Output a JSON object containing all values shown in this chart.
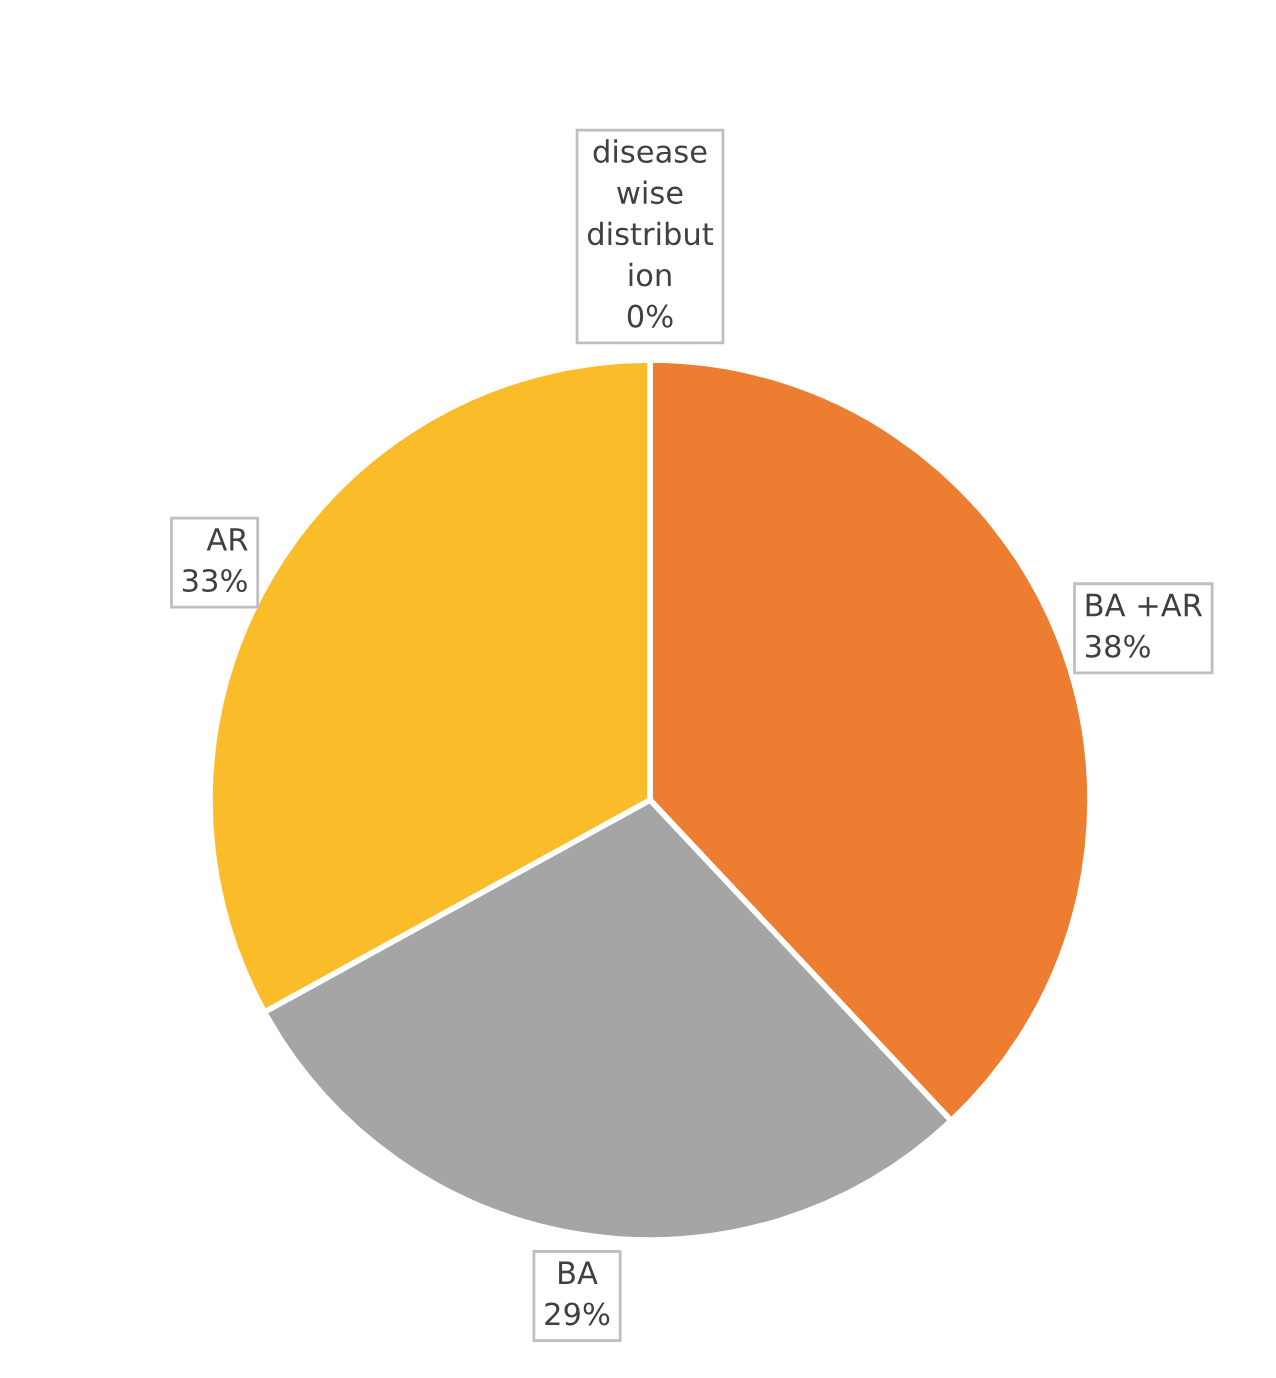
{
  "chart_data": {
    "type": "pie",
    "categories": [
      "disease\nwise\ndistribut\nion",
      "BA +AR",
      "BA",
      "AR"
    ],
    "values": [
      0,
      38,
      29,
      33
    ],
    "colors": [
      "#4472c4",
      "#ed7d31",
      "#a5a5a5",
      "#fbbc2a"
    ],
    "value_labels": [
      "0%",
      "38%",
      "29%",
      "33%"
    ]
  }
}
